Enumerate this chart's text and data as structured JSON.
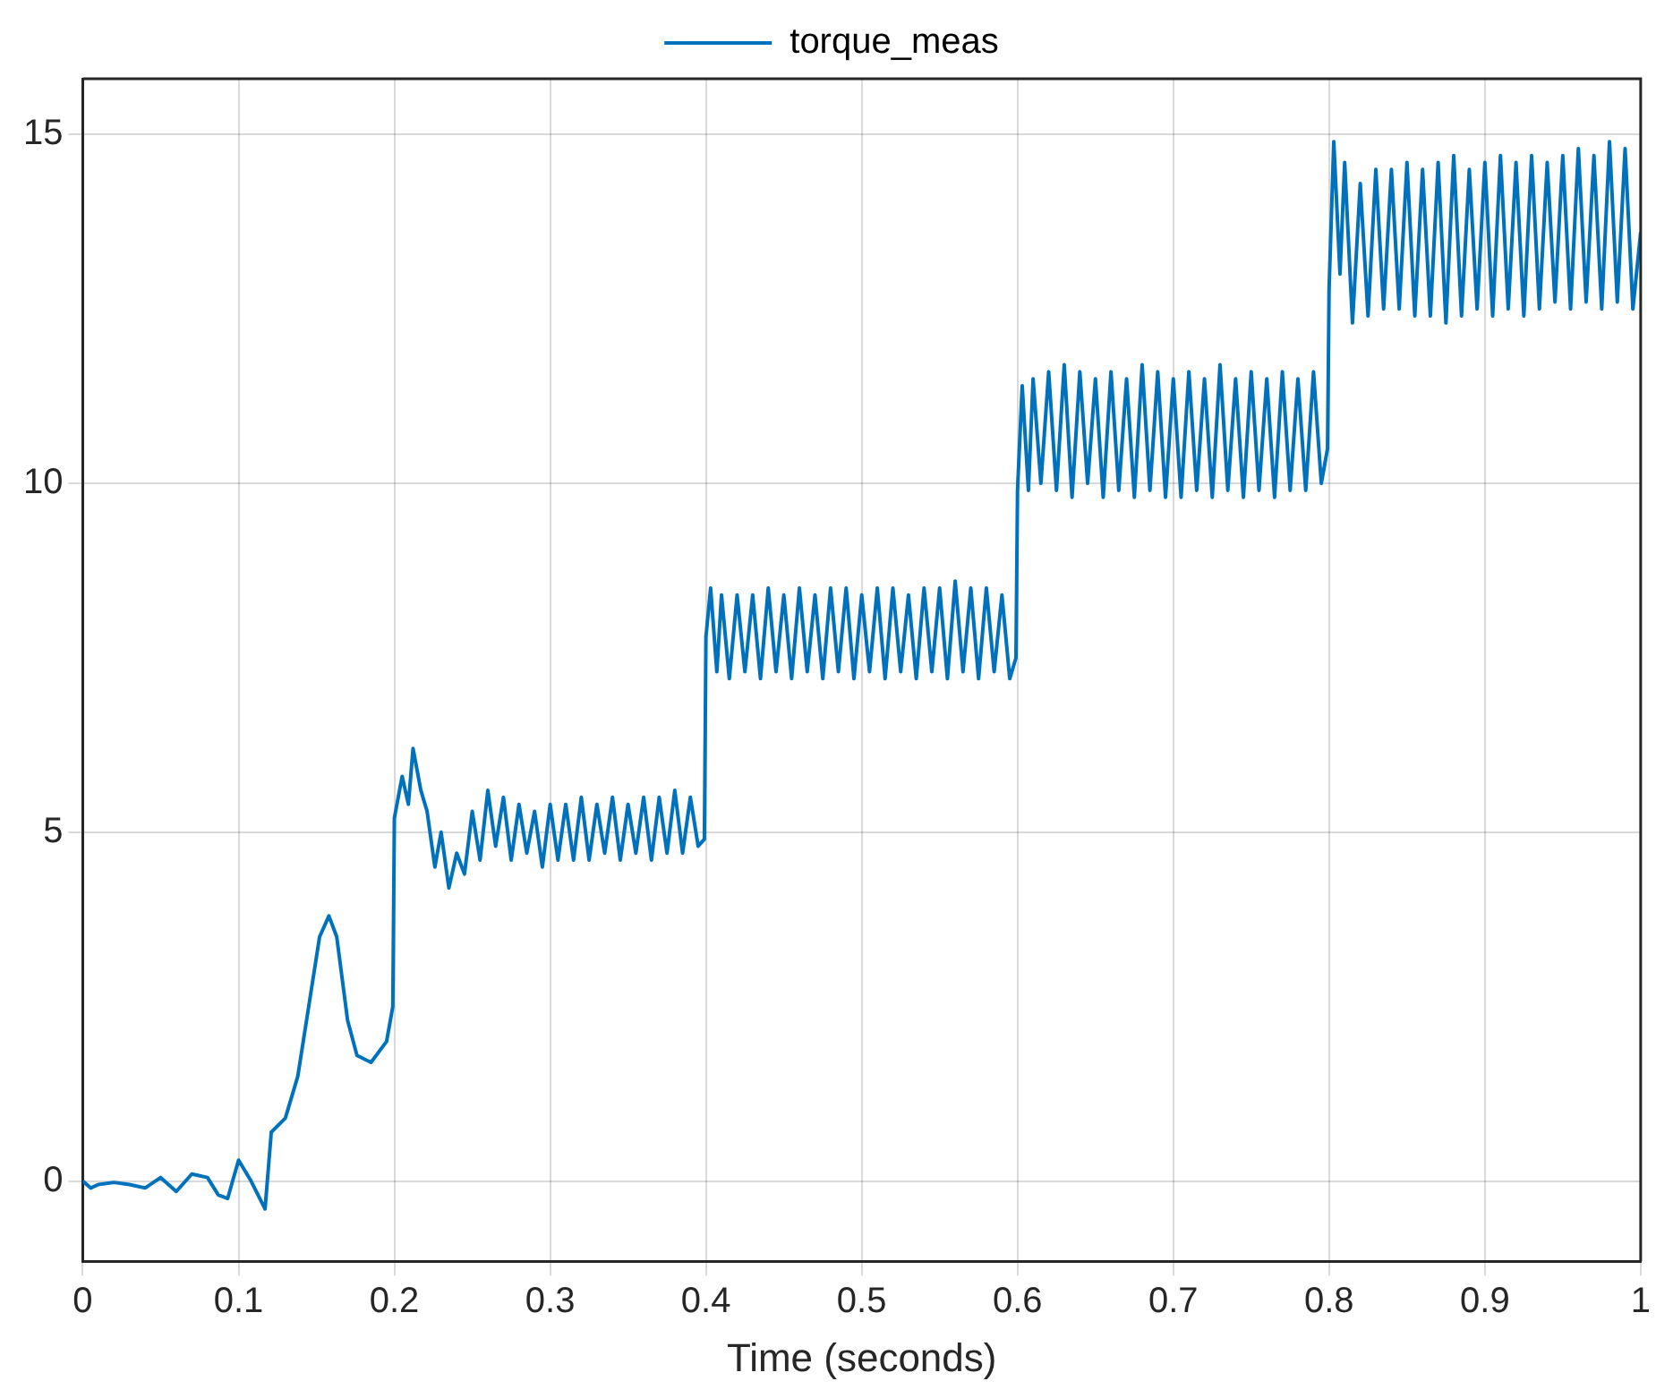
{
  "chart_data": {
    "type": "line",
    "xlabel": "Time (seconds)",
    "legend": "top",
    "grid": true,
    "xlim": [
      0,
      1
    ],
    "xticks": [
      0,
      0.1,
      0.2,
      0.3,
      0.4,
      0.5,
      0.6,
      0.7,
      0.8,
      0.9,
      1
    ],
    "ylim": [
      -1.15,
      15.8
    ],
    "yticks": [
      0,
      5,
      10,
      15
    ],
    "series": [
      {
        "name": "torque_meas",
        "color": "#0072bd",
        "x": [
          0,
          0.005,
          0.01,
          0.02,
          0.03,
          0.04,
          0.05,
          0.06,
          0.07,
          0.08,
          0.087,
          0.093,
          0.1,
          0.108,
          0.117,
          0.121,
          0.13,
          0.138,
          0.145,
          0.152,
          0.158,
          0.163,
          0.17,
          0.176,
          0.185,
          0.195,
          0.199,
          0.2,
          0.205,
          0.209,
          0.212,
          0.217,
          0.221,
          0.226,
          0.23,
          0.235,
          0.24,
          0.245,
          0.25,
          0.255,
          0.26,
          0.265,
          0.27,
          0.275,
          0.28,
          0.285,
          0.29,
          0.295,
          0.3,
          0.305,
          0.31,
          0.315,
          0.32,
          0.325,
          0.33,
          0.335,
          0.34,
          0.345,
          0.35,
          0.355,
          0.36,
          0.365,
          0.37,
          0.375,
          0.38,
          0.385,
          0.39,
          0.395,
          0.399,
          0.4,
          0.403,
          0.407,
          0.41,
          0.415,
          0.42,
          0.425,
          0.43,
          0.435,
          0.44,
          0.445,
          0.45,
          0.455,
          0.46,
          0.465,
          0.47,
          0.475,
          0.48,
          0.485,
          0.49,
          0.495,
          0.5,
          0.505,
          0.51,
          0.515,
          0.52,
          0.525,
          0.53,
          0.535,
          0.54,
          0.545,
          0.55,
          0.555,
          0.56,
          0.565,
          0.57,
          0.575,
          0.58,
          0.585,
          0.59,
          0.595,
          0.599,
          0.6,
          0.603,
          0.607,
          0.61,
          0.615,
          0.62,
          0.625,
          0.63,
          0.635,
          0.64,
          0.645,
          0.65,
          0.655,
          0.66,
          0.665,
          0.67,
          0.675,
          0.68,
          0.685,
          0.69,
          0.695,
          0.7,
          0.705,
          0.71,
          0.715,
          0.72,
          0.725,
          0.73,
          0.735,
          0.74,
          0.745,
          0.75,
          0.755,
          0.76,
          0.765,
          0.77,
          0.775,
          0.78,
          0.785,
          0.79,
          0.795,
          0.799,
          0.8,
          0.803,
          0.807,
          0.81,
          0.815,
          0.82,
          0.825,
          0.83,
          0.835,
          0.84,
          0.845,
          0.85,
          0.855,
          0.86,
          0.865,
          0.87,
          0.875,
          0.88,
          0.885,
          0.89,
          0.895,
          0.9,
          0.905,
          0.91,
          0.915,
          0.92,
          0.925,
          0.93,
          0.935,
          0.94,
          0.945,
          0.95,
          0.955,
          0.96,
          0.965,
          0.97,
          0.975,
          0.98,
          0.985,
          0.99,
          0.995,
          1
        ],
        "values": [
          0,
          -0.1,
          -0.05,
          -0.02,
          -0.05,
          -0.1,
          0.05,
          -0.15,
          0.1,
          0.05,
          -0.2,
          -0.25,
          0.3,
          0,
          -0.4,
          0.7,
          0.9,
          1.5,
          2.5,
          3.5,
          3.8,
          3.5,
          2.3,
          1.8,
          1.7,
          2.0,
          2.5,
          5.2,
          5.8,
          5.4,
          6.2,
          5.6,
          5.3,
          4.5,
          5.0,
          4.2,
          4.7,
          4.4,
          5.3,
          4.6,
          5.6,
          4.8,
          5.5,
          4.6,
          5.4,
          4.7,
          5.3,
          4.5,
          5.4,
          4.6,
          5.4,
          4.6,
          5.5,
          4.6,
          5.4,
          4.7,
          5.5,
          4.6,
          5.4,
          4.7,
          5.5,
          4.6,
          5.5,
          4.7,
          5.6,
          4.7,
          5.5,
          4.8,
          4.9,
          7.8,
          8.5,
          7.3,
          8.4,
          7.2,
          8.4,
          7.3,
          8.4,
          7.2,
          8.5,
          7.3,
          8.4,
          7.2,
          8.5,
          7.3,
          8.4,
          7.2,
          8.5,
          7.3,
          8.5,
          7.2,
          8.4,
          7.3,
          8.5,
          7.2,
          8.5,
          7.3,
          8.4,
          7.2,
          8.5,
          7.3,
          8.5,
          7.2,
          8.6,
          7.3,
          8.5,
          7.2,
          8.5,
          7.3,
          8.4,
          7.2,
          7.5,
          9.9,
          11.4,
          9.9,
          11.5,
          10.0,
          11.6,
          9.9,
          11.7,
          9.8,
          11.6,
          10.0,
          11.5,
          9.8,
          11.6,
          9.9,
          11.5,
          9.8,
          11.7,
          9.9,
          11.6,
          9.8,
          11.5,
          9.8,
          11.6,
          9.9,
          11.5,
          9.8,
          11.7,
          9.9,
          11.5,
          9.8,
          11.6,
          9.9,
          11.5,
          9.8,
          11.6,
          9.9,
          11.5,
          9.9,
          11.6,
          10.0,
          10.5,
          12.8,
          14.9,
          13.0,
          14.6,
          12.3,
          14.3,
          12.4,
          14.5,
          12.5,
          14.5,
          12.5,
          14.6,
          12.4,
          14.5,
          12.4,
          14.6,
          12.3,
          14.7,
          12.4,
          14.5,
          12.5,
          14.6,
          12.4,
          14.7,
          12.5,
          14.6,
          12.4,
          14.7,
          12.5,
          14.6,
          12.6,
          14.7,
          12.5,
          14.8,
          12.6,
          14.7,
          12.5,
          14.9,
          12.6,
          14.8,
          12.5,
          13.6
        ]
      }
    ]
  }
}
